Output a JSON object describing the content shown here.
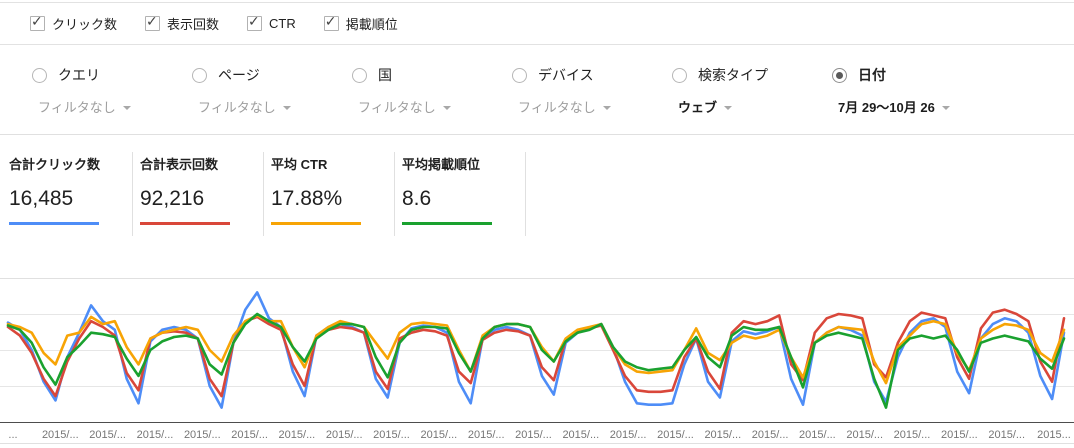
{
  "metrics_toggle": {
    "items": [
      {
        "label": "クリック数",
        "checked": true
      },
      {
        "label": "表示回数",
        "checked": true
      },
      {
        "label": "CTR",
        "checked": true
      },
      {
        "label": "掲載順位",
        "checked": true
      }
    ]
  },
  "dimension_tabs": {
    "items": [
      {
        "label": "クエリ",
        "sub": "フィルタなし",
        "selected": false,
        "value_strong": false
      },
      {
        "label": "ページ",
        "sub": "フィルタなし",
        "selected": false,
        "value_strong": false
      },
      {
        "label": "国",
        "sub": "フィルタなし",
        "selected": false,
        "value_strong": false
      },
      {
        "label": "デバイス",
        "sub": "フィルタなし",
        "selected": false,
        "value_strong": false
      },
      {
        "label": "検索タイプ",
        "sub": "ウェブ",
        "selected": false,
        "value_strong": true
      },
      {
        "label": "日付",
        "sub": "7月 29〜10月 26",
        "selected": true,
        "value_strong": true
      }
    ]
  },
  "summary_cards": [
    {
      "label": "合計クリック数",
      "value": "16,485",
      "color": "#4e8df7"
    },
    {
      "label": "合計表示回数",
      "value": "92,216",
      "color": "#d9473a"
    },
    {
      "label": "平均 CTR",
      "value": "17.88%",
      "color": "#f7a405"
    },
    {
      "label": "平均掲載順位",
      "value": "8.6",
      "color": "#1aa12f"
    }
  ],
  "chart_data": {
    "type": "line",
    "title": "",
    "xlabel": "",
    "ylabel": "",
    "year": 2015,
    "date_range": "2015/7/29 - 2015/10/26",
    "y_axis_visible": false,
    "units": "relative height, % of plot area (each metric normalized to its own hidden scale)",
    "ylim": [
      0,
      100
    ],
    "grid": true,
    "legend_position": "none (series colors match the summary cards above)",
    "x_tick_labels": [
      "...",
      "2015/...",
      "2015/...",
      "2015/...",
      "2015/...",
      "2015/...",
      "2015/...",
      "2015/...",
      "2015/...",
      "2015/...",
      "2015/...",
      "2015/...",
      "2015/...",
      "2015/...",
      "2015/...",
      "2015/...",
      "2015/...",
      "2015/...",
      "2015/...",
      "2015/...",
      "2015/...",
      "2015/...",
      "2015..."
    ],
    "x": [
      "7/29",
      "7/30",
      "7/31",
      "8/1",
      "8/2",
      "8/3",
      "8/4",
      "8/5",
      "8/6",
      "8/7",
      "8/8",
      "8/9",
      "8/10",
      "8/11",
      "8/12",
      "8/13",
      "8/14",
      "8/15",
      "8/16",
      "8/17",
      "8/18",
      "8/19",
      "8/20",
      "8/21",
      "8/22",
      "8/23",
      "8/24",
      "8/25",
      "8/26",
      "8/27",
      "8/28",
      "8/29",
      "8/30",
      "8/31",
      "9/1",
      "9/2",
      "9/3",
      "9/4",
      "9/5",
      "9/6",
      "9/7",
      "9/8",
      "9/9",
      "9/10",
      "9/11",
      "9/12",
      "9/13",
      "9/14",
      "9/15",
      "9/16",
      "9/17",
      "9/18",
      "9/19",
      "9/20",
      "9/21",
      "9/22",
      "9/23",
      "9/24",
      "9/25",
      "9/26",
      "9/27",
      "9/28",
      "9/29",
      "9/30",
      "10/1",
      "10/2",
      "10/3",
      "10/4",
      "10/5",
      "10/6",
      "10/7",
      "10/8",
      "10/9",
      "10/10",
      "10/11",
      "10/12",
      "10/13",
      "10/14",
      "10/15",
      "10/16",
      "10/17",
      "10/18",
      "10/19",
      "10/20",
      "10/21",
      "10/22",
      "10/23",
      "10/24",
      "10/25",
      "10/26"
    ],
    "series": [
      {
        "name": "クリック数",
        "color": "#4e8df7",
        "values": [
          69,
          64,
          50,
          28,
          15,
          45,
          62,
          81,
          70,
          64,
          30,
          13,
          56,
          64,
          66,
          64,
          58,
          25,
          10,
          55,
          78,
          90,
          72,
          66,
          35,
          18,
          60,
          66,
          68,
          66,
          62,
          30,
          17,
          55,
          65,
          67,
          66,
          62,
          28,
          13,
          58,
          64,
          66,
          64,
          60,
          32,
          19,
          55,
          62,
          65,
          68,
          52,
          28,
          13,
          12,
          12,
          13,
          40,
          58,
          28,
          17,
          56,
          63,
          61,
          63,
          66,
          30,
          12,
          55,
          62,
          66,
          64,
          60,
          28,
          14,
          45,
          62,
          70,
          72,
          66,
          35,
          20,
          58,
          68,
          72,
          70,
          62,
          32,
          16,
          62
        ]
      },
      {
        "name": "表示回数",
        "color": "#d9473a",
        "values": [
          66,
          60,
          48,
          30,
          18,
          42,
          58,
          70,
          66,
          60,
          34,
          22,
          58,
          62,
          63,
          62,
          58,
          30,
          18,
          55,
          70,
          73,
          68,
          64,
          40,
          25,
          60,
          64,
          66,
          65,
          62,
          35,
          23,
          58,
          62,
          64,
          63,
          60,
          35,
          27,
          57,
          62,
          64,
          63,
          60,
          38,
          29,
          57,
          62,
          65,
          67,
          50,
          32,
          22,
          21,
          21,
          22,
          45,
          58,
          35,
          23,
          62,
          70,
          68,
          70,
          74,
          40,
          29,
          62,
          72,
          75,
          74,
          72,
          40,
          31,
          55,
          70,
          76,
          74,
          72,
          45,
          30,
          65,
          76,
          78,
          75,
          70,
          42,
          28,
          72
        ]
      },
      {
        "name": "CTR",
        "color": "#f7a405",
        "values": [
          68,
          66,
          62,
          48,
          40,
          60,
          62,
          73,
          68,
          70,
          52,
          40,
          58,
          62,
          64,
          66,
          64,
          50,
          42,
          60,
          70,
          74,
          70,
          70,
          52,
          38,
          60,
          66,
          70,
          68,
          66,
          55,
          44,
          62,
          68,
          69,
          68,
          67,
          50,
          35,
          60,
          66,
          68,
          68,
          66,
          52,
          42,
          58,
          64,
          66,
          68,
          52,
          40,
          35,
          34,
          35,
          36,
          50,
          65,
          48,
          43,
          55,
          60,
          58,
          60,
          64,
          45,
          31,
          55,
          62,
          66,
          65,
          64,
          42,
          27,
          52,
          60,
          68,
          70,
          68,
          48,
          36,
          58,
          64,
          68,
          67,
          64,
          48,
          42,
          64
        ]
      },
      {
        "name": "掲載順位",
        "color": "#1aa12f",
        "values": [
          67,
          64,
          55,
          38,
          26,
          45,
          53,
          62,
          61,
          59,
          44,
          32,
          50,
          56,
          59,
          60,
          58,
          40,
          33,
          55,
          68,
          75,
          70,
          66,
          52,
          42,
          58,
          64,
          68,
          68,
          66,
          45,
          31,
          55,
          64,
          66,
          66,
          65,
          48,
          35,
          58,
          66,
          68,
          68,
          66,
          50,
          42,
          56,
          62,
          64,
          68,
          52,
          42,
          38,
          36,
          37,
          38,
          50,
          59,
          45,
          38,
          60,
          66,
          64,
          64,
          66,
          45,
          24,
          55,
          60,
          62,
          60,
          58,
          30,
          10,
          50,
          58,
          60,
          58,
          60,
          50,
          35,
          55,
          58,
          60,
          58,
          56,
          44,
          37,
          58
        ]
      }
    ]
  },
  "chart_style": {
    "plot_top_border": "#e0e0e0",
    "gridline_color": "#e6e6e6",
    "axis_line_color": "#4d4d4d",
    "tick_label_color": "#757575",
    "bottom_border": "#e0e0e0"
  }
}
